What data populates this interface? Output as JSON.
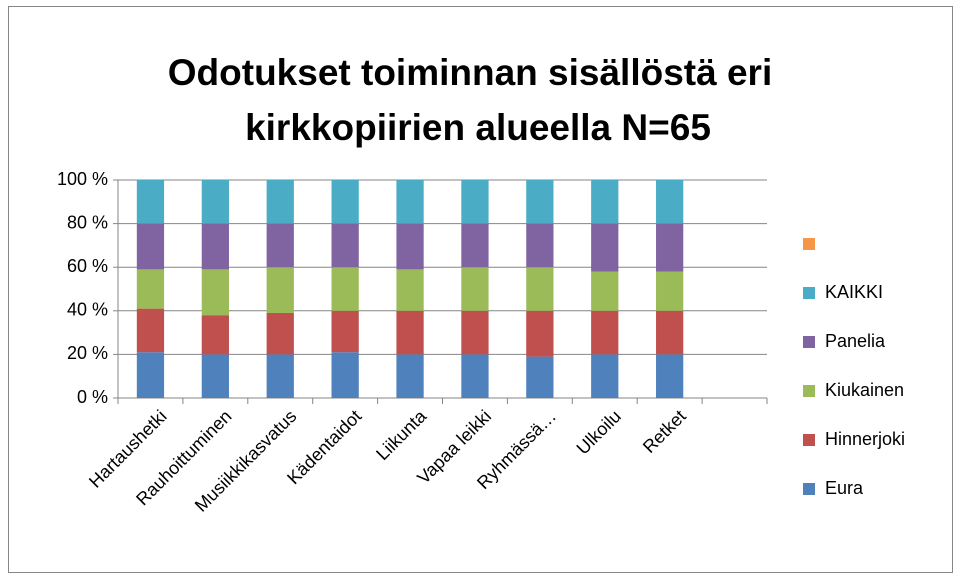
{
  "chart_data": {
    "type": "stacked_bar",
    "title": [
      "Odotukset toiminnan sisällöstä  eri",
      "kirkkopiirien alueella N=65"
    ],
    "categories": [
      "Hartaushetki",
      "Rauhoittuminen",
      "Musiikkikasvatus",
      "Kädentaidot",
      "Liikunta",
      "Vapaa leikki",
      "Ryhmässä…",
      "Ulkoilu",
      "Retket",
      null
    ],
    "series": [
      {
        "name": "Eura",
        "color": "#4f81bd",
        "values": [
          21,
          20,
          20,
          21,
          20,
          20,
          19,
          20,
          20,
          null
        ]
      },
      {
        "name": "Hinnerjoki",
        "color": "#c0504d",
        "values": [
          20,
          18,
          19,
          19,
          20,
          20,
          21,
          20,
          20,
          null
        ]
      },
      {
        "name": "Kiukainen",
        "color": "#9bbb59",
        "values": [
          18,
          21,
          21,
          20,
          19,
          20,
          20,
          18,
          18,
          null
        ]
      },
      {
        "name": "Panelia",
        "color": "#8064a2",
        "values": [
          21,
          21,
          20,
          20,
          21,
          20,
          20,
          22,
          22,
          null
        ]
      },
      {
        "name": "KAIKKI",
        "color": "#4bacc6",
        "values": [
          20,
          20,
          20,
          20,
          20,
          20,
          20,
          20,
          20,
          null
        ]
      },
      {
        "color": "#f79646",
        "values": [
          0,
          0,
          0,
          0,
          0,
          0,
          0,
          0,
          0,
          null
        ]
      }
    ],
    "ylim": [
      0,
      100
    ],
    "yticks": [
      {
        "value": 0,
        "label": "0 %"
      },
      {
        "value": 20,
        "label": "20 %"
      },
      {
        "value": 40,
        "label": "40 %"
      },
      {
        "value": 60,
        "label": "60 %"
      },
      {
        "value": 80,
        "label": "80 %"
      },
      {
        "value": 100,
        "label": "100 %"
      }
    ],
    "grid": true,
    "legend": "right"
  }
}
